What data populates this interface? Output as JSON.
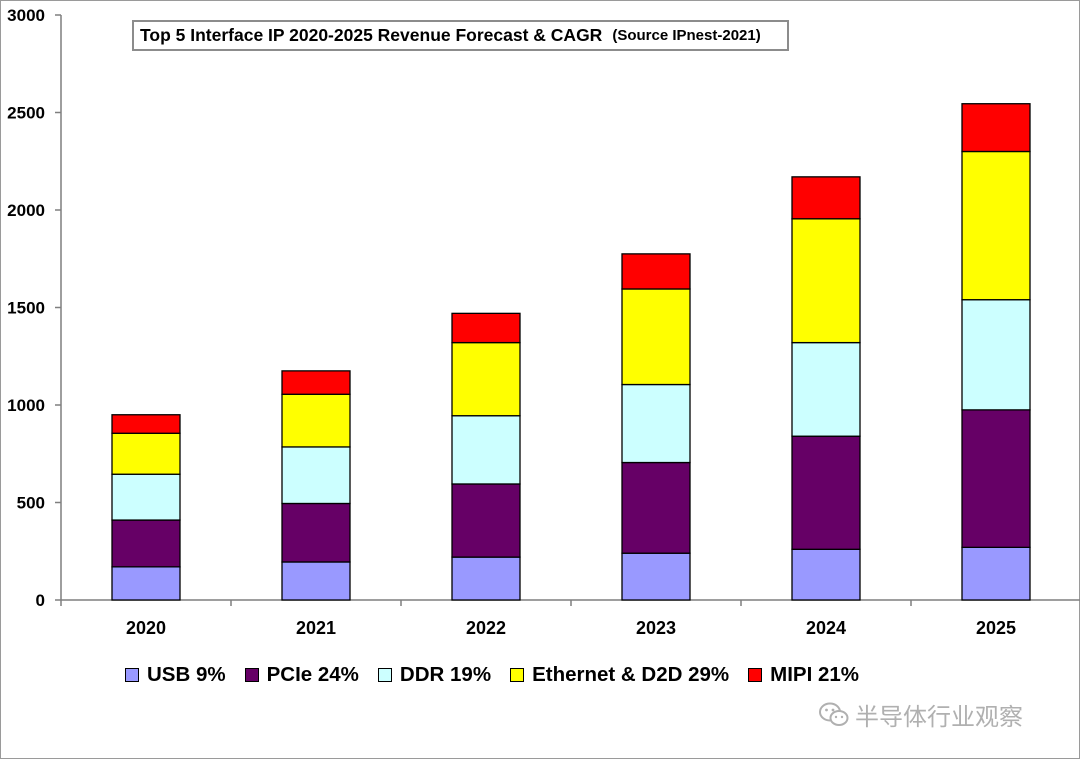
{
  "chart_data": {
    "type": "bar",
    "stacked": true,
    "title": "Top 5 Interface IP 2020-2025 Revenue Forecast & CAGR",
    "subtitle": "(Source IPnest-2021)",
    "xlabel": "",
    "ylabel": "",
    "categories": [
      "2020",
      "2021",
      "2022",
      "2023",
      "2024",
      "2025"
    ],
    "ylim": [
      0,
      3000
    ],
    "yticks": [
      0,
      500,
      1000,
      1500,
      2000,
      2500,
      3000
    ],
    "ytick_labels": [
      "0",
      "500",
      "1000",
      "1500",
      "2000",
      "2500",
      "3000"
    ],
    "grid": false,
    "legend_position": "bottom",
    "series": [
      {
        "name": "USB",
        "legend_label": "USB 9%",
        "color": "#9999ff",
        "values": [
          170,
          195,
          220,
          240,
          260,
          270
        ]
      },
      {
        "name": "PCIe",
        "legend_label": "PCIe 24%",
        "color": "#660066",
        "values": [
          240,
          300,
          375,
          465,
          580,
          705
        ]
      },
      {
        "name": "DDR",
        "legend_label": "DDR 19%",
        "color": "#ccffff",
        "values": [
          235,
          290,
          350,
          400,
          480,
          565
        ]
      },
      {
        "name": "Ethernet & D2D",
        "legend_label": "Ethernet & D2D 29%",
        "color": "#ffff00",
        "values": [
          210,
          270,
          375,
          490,
          635,
          760
        ]
      },
      {
        "name": "MIPI",
        "legend_label": "MIPI 21%",
        "color": "#ff0000",
        "values": [
          95,
          120,
          150,
          180,
          215,
          245
        ]
      }
    ]
  },
  "watermark": {
    "icon": "wechat-icon",
    "text": "半导体行业观察"
  }
}
